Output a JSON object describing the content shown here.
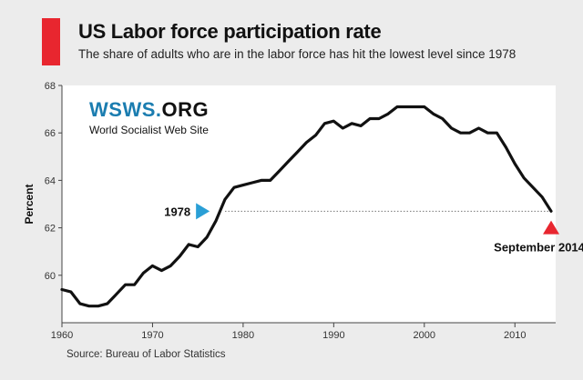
{
  "header": {
    "title": "US Labor force participation rate",
    "subtitle": "The share of adults who are in the labor force has hit the lowest level since 1978",
    "accent_color": "#e8262f"
  },
  "branding": {
    "name_prefix": "WSWS.",
    "name_suffix": "ORG",
    "tagline": "World Socialist Web Site",
    "color": "#1b7db0"
  },
  "source": "Source: Bureau of Labor Statistics",
  "chart_data": {
    "type": "line",
    "title": "US Labor force participation rate",
    "xlabel": "",
    "ylabel": "Percent",
    "xlim": [
      1960,
      2014.5
    ],
    "ylim": [
      58,
      68
    ],
    "x_ticks": [
      1960,
      1970,
      1980,
      1990,
      2000,
      2010
    ],
    "y_ticks": [
      60,
      62,
      64,
      66,
      68
    ],
    "grid": false,
    "series": [
      {
        "name": "Labor force participation rate",
        "x": [
          1960,
          1961,
          1962,
          1963,
          1964,
          1965,
          1966,
          1967,
          1968,
          1969,
          1970,
          1971,
          1972,
          1973,
          1974,
          1975,
          1976,
          1977,
          1978,
          1979,
          1980,
          1981,
          1982,
          1983,
          1984,
          1985,
          1986,
          1987,
          1988,
          1989,
          1990,
          1991,
          1992,
          1993,
          1994,
          1995,
          1996,
          1997,
          1998,
          1999,
          2000,
          2001,
          2002,
          2003,
          2004,
          2005,
          2006,
          2007,
          2008,
          2009,
          2010,
          2011,
          2012,
          2013,
          2014
        ],
        "values": [
          59.4,
          59.3,
          58.8,
          58.7,
          58.7,
          58.8,
          59.2,
          59.6,
          59.6,
          60.1,
          60.4,
          60.2,
          60.4,
          60.8,
          61.3,
          61.2,
          61.6,
          62.3,
          63.2,
          63.7,
          63.8,
          63.9,
          64.0,
          64.0,
          64.4,
          64.8,
          65.2,
          65.6,
          65.9,
          66.4,
          66.5,
          66.2,
          66.4,
          66.3,
          66.6,
          66.6,
          66.8,
          67.1,
          67.1,
          67.1,
          67.1,
          66.8,
          66.6,
          66.2,
          66.0,
          66.0,
          66.2,
          66.0,
          66.0,
          65.4,
          64.7,
          64.1,
          63.7,
          63.3,
          62.7
        ]
      }
    ],
    "reference_line": {
      "value": 62.7,
      "from_year": 1978
    },
    "annotations": [
      {
        "label": "1978",
        "year": 1975.5,
        "value": 62.7,
        "marker": "right-triangle",
        "color": "#2a9fd6"
      },
      {
        "label": "September 2014",
        "year": 2014,
        "value": 62.0,
        "marker": "up-triangle",
        "color": "#e8262f"
      }
    ]
  }
}
